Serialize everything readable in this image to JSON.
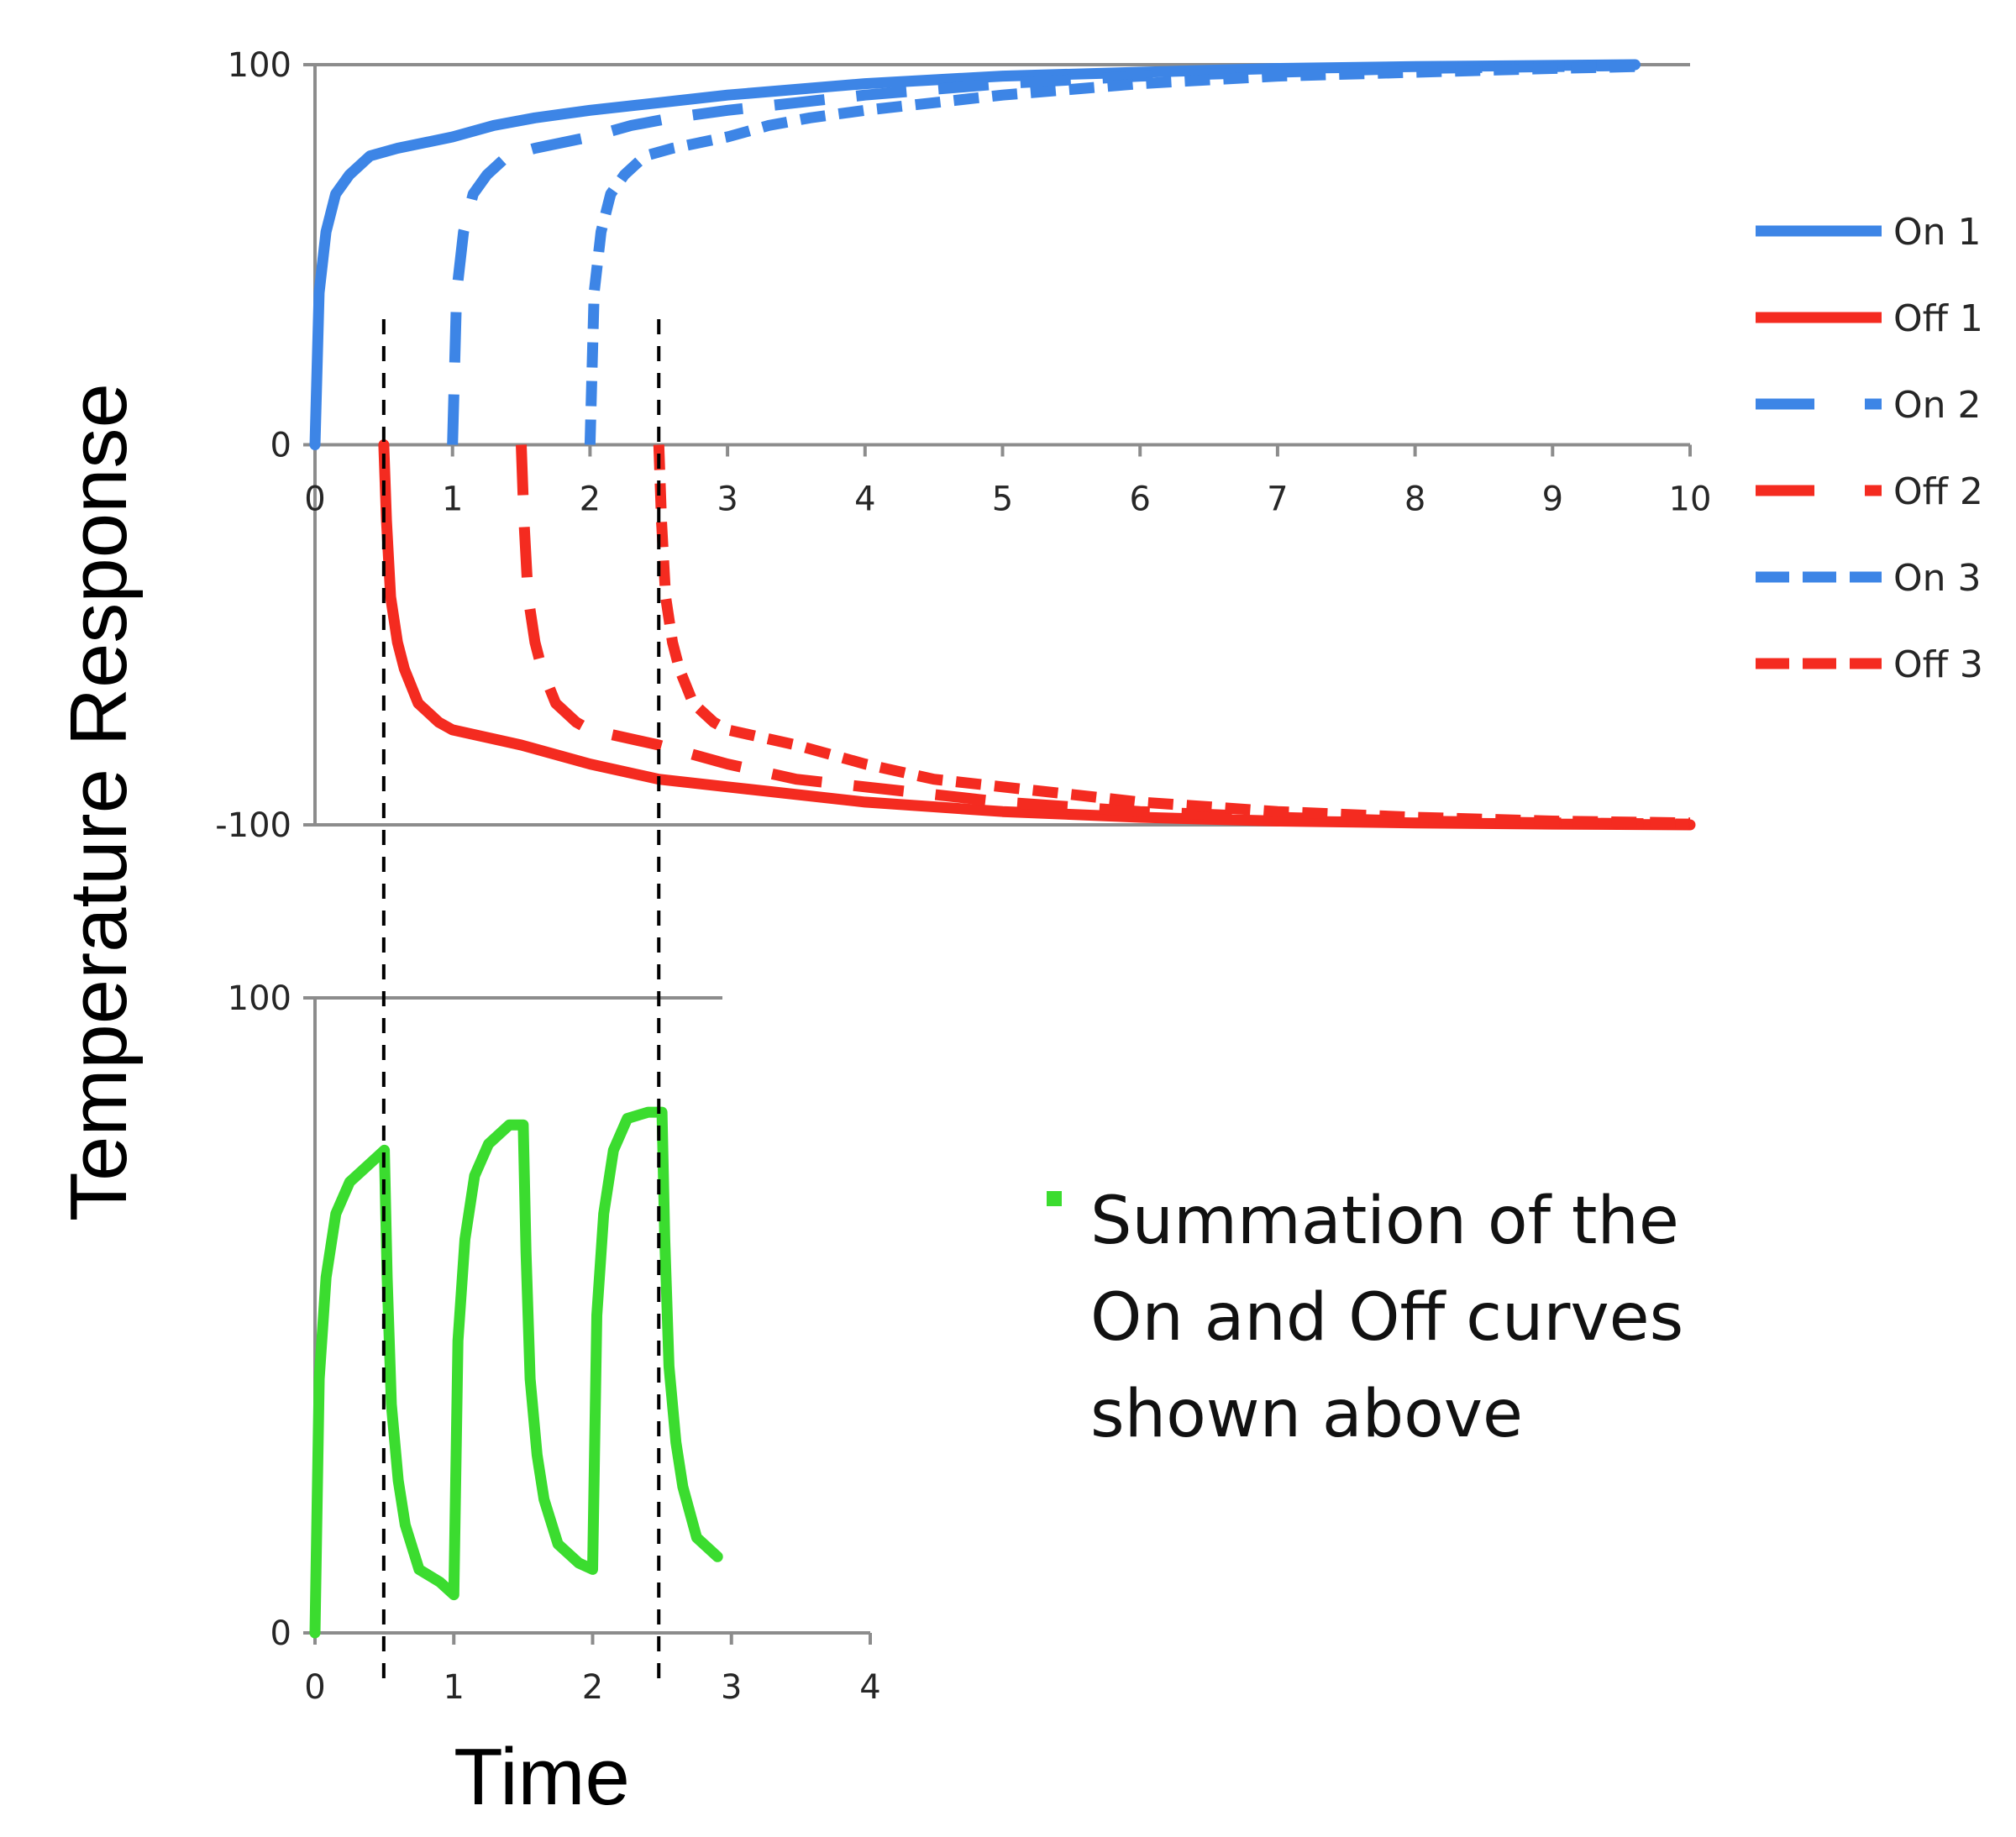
{
  "ylabel": "Temperature Response",
  "xlabel": "Time",
  "annotation": {
    "lines": [
      "Summation of the",
      "On and Off curves",
      "shown above"
    ],
    "marker_color": "#3bdc2f"
  },
  "colors": {
    "on": "#3d85e6",
    "off": "#f42b20",
    "sum": "#3bdc2f",
    "axis": "#8c8c8c",
    "guide": "#000000"
  },
  "guide_lines_x": [
    0.5,
    2.5
  ],
  "chart_data": [
    {
      "type": "line",
      "xlim": [
        0,
        10
      ],
      "ylim": [
        -100,
        100
      ],
      "x_ticks": [
        "0",
        "1",
        "2",
        "3",
        "4",
        "5",
        "6",
        "7",
        "8",
        "9",
        "10"
      ],
      "y_ticks": [
        "100",
        "0",
        "-100"
      ],
      "legend": {
        "placement": "right"
      },
      "series": [
        {
          "name": "On 1",
          "style": "solid",
          "color": "#3d85e6",
          "x": [
            0,
            0.03,
            0.08,
            0.15,
            0.25,
            0.4,
            0.6,
            1.0,
            1.3,
            1.6,
            2.0,
            2.5,
            3.0,
            4.0,
            5.0,
            6.0,
            7.0,
            8.0,
            9.0,
            9.6
          ],
          "y": [
            0,
            40,
            56,
            66,
            71,
            76,
            78,
            81,
            84,
            86,
            88,
            90,
            92,
            95,
            97,
            98,
            99,
            99.5,
            99.8,
            100
          ]
        },
        {
          "name": "Off 1",
          "style": "solid",
          "color": "#f42b20",
          "x": [
            0.5,
            0.52,
            0.55,
            0.6,
            0.65,
            0.75,
            0.9,
            1.0,
            1.5,
            2.0,
            2.5,
            3.0,
            4.0,
            5.0,
            6.0,
            7.0,
            8.0,
            9.0,
            10.0
          ],
          "y": [
            0,
            -20,
            -40,
            -52,
            -59,
            -68,
            -73,
            -75,
            -79,
            -84,
            -88,
            -90,
            -94,
            -96.5,
            -98,
            -99,
            -99.5,
            -99.8,
            -100
          ]
        },
        {
          "name": "On 2",
          "style": "dashed",
          "color": "#3d85e6",
          "x": [
            1.0,
            1.03,
            1.08,
            1.15,
            1.25,
            1.4,
            1.6,
            2.0,
            2.3,
            2.6,
            3.0,
            3.5,
            4.0,
            5.0,
            6.0,
            7.0,
            8.0,
            9.0,
            9.6
          ],
          "y": [
            0,
            40,
            56,
            66,
            71,
            76,
            78,
            81,
            84,
            86,
            88,
            90,
            92,
            95,
            97,
            98,
            99,
            99.5,
            99.8
          ]
        },
        {
          "name": "Off 2",
          "style": "dashed",
          "color": "#f42b20",
          "x": [
            1.5,
            1.52,
            1.55,
            1.6,
            1.65,
            1.75,
            1.9,
            2.0,
            2.5,
            3.0,
            3.5,
            4.0,
            5.0,
            6.0,
            7.0,
            8.0,
            9.0,
            10.0
          ],
          "y": [
            0,
            -20,
            -40,
            -52,
            -59,
            -68,
            -73,
            -75,
            -79,
            -84,
            -88,
            -90,
            -94,
            -96.5,
            -98,
            -99,
            -99.5,
            -99.8
          ]
        },
        {
          "name": "On 3",
          "style": "dotted",
          "color": "#3d85e6",
          "x": [
            2.0,
            2.03,
            2.08,
            2.15,
            2.25,
            2.4,
            2.6,
            3.0,
            3.3,
            3.6,
            4.0,
            4.5,
            5.0,
            6.0,
            7.0,
            8.0,
            9.0,
            9.6
          ],
          "y": [
            0,
            40,
            56,
            66,
            71,
            76,
            78,
            81,
            84,
            86,
            88,
            90,
            92,
            95,
            97,
            98,
            99,
            99.5
          ]
        },
        {
          "name": "Off 3",
          "style": "dotted",
          "color": "#f42b20",
          "x": [
            2.5,
            2.52,
            2.55,
            2.6,
            2.65,
            2.75,
            2.9,
            3.0,
            3.5,
            4.0,
            4.5,
            5.0,
            6.0,
            7.0,
            8.0,
            9.0,
            10.0
          ],
          "y": [
            0,
            -20,
            -40,
            -52,
            -59,
            -68,
            -73,
            -75,
            -79,
            -84,
            -88,
            -90,
            -94,
            -96.5,
            -98,
            -99,
            -99.5
          ]
        }
      ]
    },
    {
      "type": "line",
      "xlim": [
        0,
        4
      ],
      "ylim": [
        0,
        100
      ],
      "x_ticks": [
        "0",
        "1",
        "2",
        "3",
        "4"
      ],
      "y_ticks": [
        "100",
        "0"
      ],
      "series": [
        {
          "style": "solid",
          "color": "#3bdc2f",
          "x": [
            0,
            0.03,
            0.08,
            0.15,
            0.25,
            0.4,
            0.5,
            0.52,
            0.55,
            0.6,
            0.65,
            0.75,
            0.9,
            1.0,
            1.03,
            1.08,
            1.15,
            1.25,
            1.4,
            1.5,
            1.52,
            1.55,
            1.6,
            1.65,
            1.75,
            1.9,
            2.0,
            2.03,
            2.08,
            2.15,
            2.25,
            2.4,
            2.5,
            2.52,
            2.55,
            2.6,
            2.65,
            2.75,
            2.9
          ],
          "y": [
            0,
            40,
            56,
            66,
            71,
            74,
            76,
            56,
            36,
            24,
            17,
            10,
            8,
            6,
            46,
            62,
            72,
            77,
            80,
            80,
            60,
            40,
            28,
            21,
            14,
            11,
            10,
            50,
            66,
            76,
            81,
            82,
            82,
            62,
            42,
            30,
            23,
            15,
            12
          ]
        }
      ]
    }
  ]
}
